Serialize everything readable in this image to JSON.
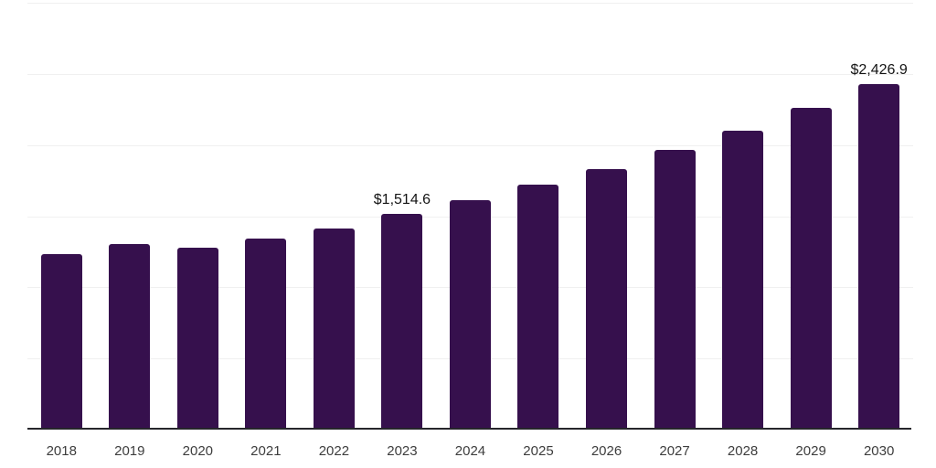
{
  "chart_data": {
    "type": "bar",
    "title": "",
    "xlabel": "",
    "ylabel": "",
    "categories": [
      "2018",
      "2019",
      "2020",
      "2021",
      "2022",
      "2023",
      "2024",
      "2025",
      "2026",
      "2027",
      "2028",
      "2029",
      "2030"
    ],
    "values": [
      1234,
      1305,
      1277,
      1342,
      1416,
      1514.6,
      1611,
      1722,
      1832,
      1967,
      2102,
      2264,
      2426.9
    ],
    "value_labels": [
      null,
      null,
      null,
      null,
      null,
      "$1,514.6",
      null,
      null,
      null,
      null,
      null,
      null,
      "$2,426.9"
    ],
    "ylim": [
      0,
      3000
    ],
    "gridline_interval": 500,
    "grid": true,
    "legend_position": "none",
    "colors": {
      "bar": "#36104D",
      "grid": "#f0f0f0",
      "axis": "#26262b",
      "tick_label": "#3d3d3d",
      "value_label": "#141414",
      "background": "#ffffff"
    }
  }
}
